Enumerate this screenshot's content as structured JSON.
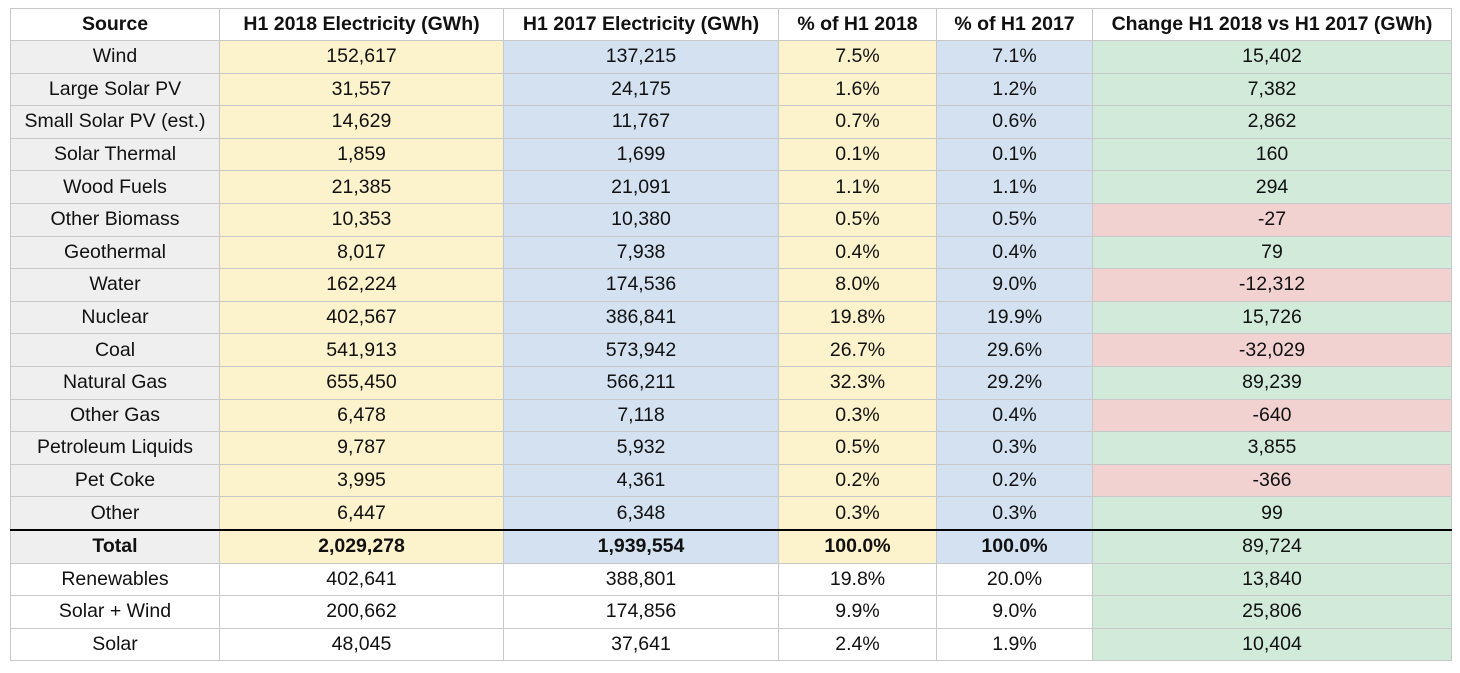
{
  "columns": [
    "Source",
    "H1 2018 Electricity (GWh)",
    "H1 2017 Electricity (GWh)",
    "% of H1 2018",
    "% of H1 2017",
    "Change H1 2018 vs H1 2017 (GWh)"
  ],
  "rows": [
    {
      "source": "Wind",
      "h1_2018": "152,617",
      "h1_2017": "137,215",
      "pct_2018": "7.5%",
      "pct_2017": "7.1%",
      "change": "15,402",
      "change_sign": "pos"
    },
    {
      "source": "Large Solar PV",
      "h1_2018": "31,557",
      "h1_2017": "24,175",
      "pct_2018": "1.6%",
      "pct_2017": "1.2%",
      "change": "7,382",
      "change_sign": "pos"
    },
    {
      "source": "Small Solar PV (est.)",
      "h1_2018": "14,629",
      "h1_2017": "11,767",
      "pct_2018": "0.7%",
      "pct_2017": "0.6%",
      "change": "2,862",
      "change_sign": "pos"
    },
    {
      "source": "Solar Thermal",
      "h1_2018": "1,859",
      "h1_2017": "1,699",
      "pct_2018": "0.1%",
      "pct_2017": "0.1%",
      "change": "160",
      "change_sign": "pos"
    },
    {
      "source": "Wood Fuels",
      "h1_2018": "21,385",
      "h1_2017": "21,091",
      "pct_2018": "1.1%",
      "pct_2017": "1.1%",
      "change": "294",
      "change_sign": "pos"
    },
    {
      "source": "Other Biomass",
      "h1_2018": "10,353",
      "h1_2017": "10,380",
      "pct_2018": "0.5%",
      "pct_2017": "0.5%",
      "change": "-27",
      "change_sign": "neg"
    },
    {
      "source": "Geothermal",
      "h1_2018": "8,017",
      "h1_2017": "7,938",
      "pct_2018": "0.4%",
      "pct_2017": "0.4%",
      "change": "79",
      "change_sign": "pos"
    },
    {
      "source": "Water",
      "h1_2018": "162,224",
      "h1_2017": "174,536",
      "pct_2018": "8.0%",
      "pct_2017": "9.0%",
      "change": "-12,312",
      "change_sign": "neg"
    },
    {
      "source": "Nuclear",
      "h1_2018": "402,567",
      "h1_2017": "386,841",
      "pct_2018": "19.8%",
      "pct_2017": "19.9%",
      "change": "15,726",
      "change_sign": "pos"
    },
    {
      "source": "Coal",
      "h1_2018": "541,913",
      "h1_2017": "573,942",
      "pct_2018": "26.7%",
      "pct_2017": "29.6%",
      "change": "-32,029",
      "change_sign": "neg"
    },
    {
      "source": "Natural Gas",
      "h1_2018": "655,450",
      "h1_2017": "566,211",
      "pct_2018": "32.3%",
      "pct_2017": "29.2%",
      "change": "89,239",
      "change_sign": "pos"
    },
    {
      "source": "Other Gas",
      "h1_2018": "6,478",
      "h1_2017": "7,118",
      "pct_2018": "0.3%",
      "pct_2017": "0.4%",
      "change": "-640",
      "change_sign": "neg"
    },
    {
      "source": "Petroleum Liquids",
      "h1_2018": "9,787",
      "h1_2017": "5,932",
      "pct_2018": "0.5%",
      "pct_2017": "0.3%",
      "change": "3,855",
      "change_sign": "pos"
    },
    {
      "source": "Pet Coke",
      "h1_2018": "3,995",
      "h1_2017": "4,361",
      "pct_2018": "0.2%",
      "pct_2017": "0.2%",
      "change": "-366",
      "change_sign": "neg"
    },
    {
      "source": "Other",
      "h1_2018": "6,447",
      "h1_2017": "6,348",
      "pct_2018": "0.3%",
      "pct_2017": "0.3%",
      "change": "99",
      "change_sign": "pos"
    }
  ],
  "total": {
    "source": "Total",
    "h1_2018": "2,029,278",
    "h1_2017": "1,939,554",
    "pct_2018": "100.0%",
    "pct_2017": "100.0%",
    "change": "89,724",
    "change_sign": "pos"
  },
  "summary_rows": [
    {
      "source": "Renewables",
      "h1_2018": "402,641",
      "h1_2017": "388,801",
      "pct_2018": "19.8%",
      "pct_2017": "20.0%",
      "change": "13,840",
      "change_sign": "pos"
    },
    {
      "source": "Solar + Wind",
      "h1_2018": "200,662",
      "h1_2017": "174,856",
      "pct_2018": "9.9%",
      "pct_2017": "9.0%",
      "change": "25,806",
      "change_sign": "pos"
    },
    {
      "source": "Solar",
      "h1_2018": "48,045",
      "h1_2017": "37,641",
      "pct_2018": "2.4%",
      "pct_2017": "1.9%",
      "change": "10,404",
      "change_sign": "pos"
    }
  ],
  "colors": {
    "source_column": "#efefef",
    "h1_2018_column": "#fcf2cc",
    "h1_2017_column": "#d3e1f1",
    "change_positive": "#d1ead9",
    "change_negative": "#f2d1d1",
    "gridline": "#c8c8c8"
  }
}
